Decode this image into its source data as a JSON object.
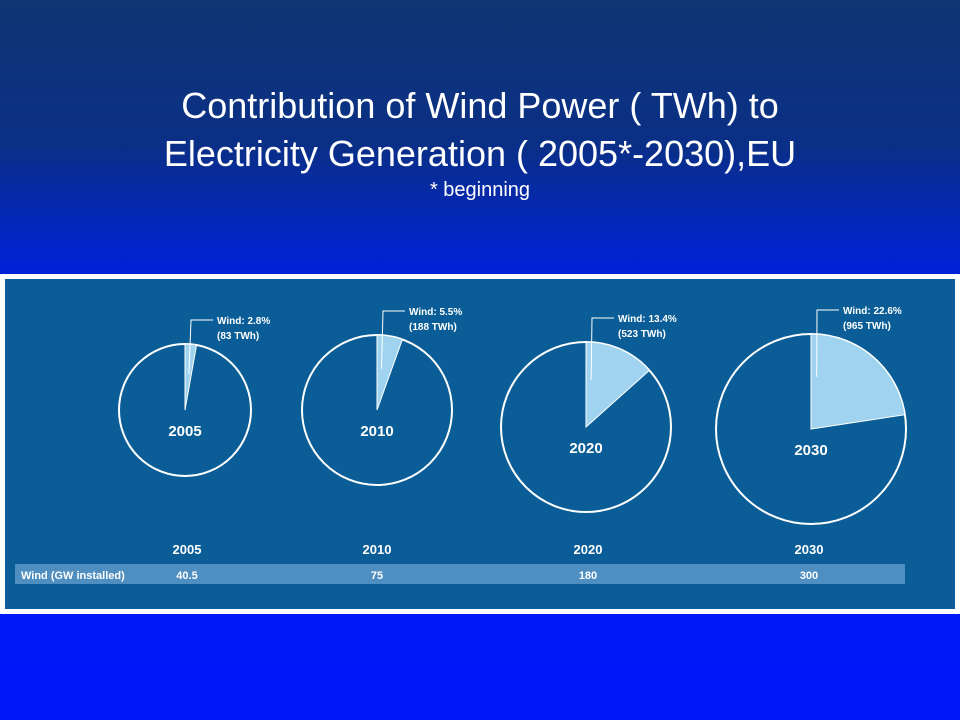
{
  "title": {
    "line1": "Contribution of Wind Power ( TWh) to",
    "line2": "Electricity Generation ( 2005*-2030),EU",
    "note": "* beginning"
  },
  "colors": {
    "background_top": "#0f3773",
    "background_bottom": "#0017fa",
    "panel": "#0a5d96",
    "wind_slice": "#9fd3ef",
    "circle_stroke": "#ffffff",
    "text": "#ffffff"
  },
  "chart_data": {
    "type": "pie",
    "charts": [
      {
        "year": "2005",
        "wind_share_pct": 2.8,
        "label_line1": "Wind: 2.8%",
        "label_line2": "(83 TWh)"
      },
      {
        "year": "2010",
        "wind_share_pct": 5.5,
        "label_line1": "Wind: 5.5%",
        "label_line2": "(188 TWh)"
      },
      {
        "year": "2020",
        "wind_share_pct": 13.4,
        "label_line1": "Wind: 13.4%",
        "label_line2": "(523 TWh)"
      },
      {
        "year": "2030",
        "wind_share_pct": 22.6,
        "label_line1": "Wind: 22.6%",
        "label_line2": "(965 TWh)"
      }
    ],
    "table": {
      "header_years": [
        "2005",
        "2010",
        "2020",
        "2030"
      ],
      "row_label": "Wind (GW installed)",
      "values": [
        "40.5",
        "75",
        "180",
        "300"
      ]
    }
  }
}
